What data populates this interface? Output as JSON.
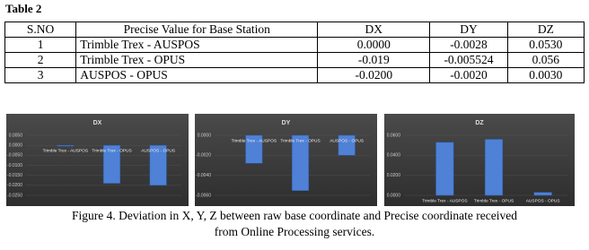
{
  "table_title": "Table 2",
  "table": {
    "header": [
      "S.NO",
      "Precise Value for Base Station",
      "DX",
      "DY",
      "DZ"
    ],
    "rows": [
      [
        "1",
        "Trimble Trex - AUSPOS",
        "0.0000",
        "-0.0028",
        "0.0530"
      ],
      [
        "2",
        "Trimble Trex - OPUS",
        "-0.019",
        "-0.005524",
        "0.056"
      ],
      [
        "3",
        "AUSPOS - OPUS",
        "-0.0200",
        "-0.0020",
        "0.0030"
      ]
    ]
  },
  "chart_data": [
    {
      "type": "bar",
      "title": "DX",
      "categories": [
        "Trimble Trex - AUSPOS",
        "Trimble Trex - OPUS",
        "AUSPOS - OPUS"
      ],
      "values": [
        0.0,
        -0.019,
        -0.02
      ],
      "color": "#4f81d6",
      "ylim": [
        -0.025,
        0.005
      ],
      "yticks": [
        {
          "value": 0.005,
          "label": "0.0050"
        },
        {
          "value": 0,
          "label": "0.0000"
        },
        {
          "value": -0.005,
          "label": "-0.0050"
        },
        {
          "value": -0.01,
          "label": "-0.0100"
        },
        {
          "value": -0.015,
          "label": "-0.0150"
        },
        {
          "value": -0.02,
          "label": "-0.0200"
        },
        {
          "value": -0.025,
          "label": "-0.0250"
        }
      ]
    },
    {
      "type": "bar",
      "title": "DY",
      "categories": [
        "Trimble Trex - AUSPOS",
        "Trimble Trex - OPUS",
        "AUSPOS - OPUS"
      ],
      "values": [
        -0.0028,
        -0.005524,
        -0.002
      ],
      "color": "#4f81d6",
      "ylim": [
        -0.006,
        0
      ],
      "yticks": [
        {
          "value": 0,
          "label": "0.0000"
        },
        {
          "value": -0.002,
          "label": "-0.0020"
        },
        {
          "value": -0.004,
          "label": "-0.0040"
        },
        {
          "value": -0.006,
          "label": "-0.0060"
        }
      ]
    },
    {
      "type": "bar",
      "title": "DZ",
      "categories": [
        "Trimble Trex - AUSPOS",
        "Trimble Trex - OPUS",
        "AUSPOS - OPUS"
      ],
      "values": [
        0.053,
        0.056,
        0.003
      ],
      "color": "#4f81d6",
      "ylim": [
        0,
        0.06
      ],
      "yticks": [
        {
          "value": 0.06,
          "label": "0.0600"
        },
        {
          "value": 0.04,
          "label": "0.0400"
        },
        {
          "value": 0.02,
          "label": "0.0200"
        },
        {
          "value": 0,
          "label": "0.0000"
        }
      ]
    }
  ],
  "caption": [
    "Figure 4. Deviation in X, Y, Z between raw base coordinate and Precise coordinate received",
    "from Online Processing services."
  ]
}
